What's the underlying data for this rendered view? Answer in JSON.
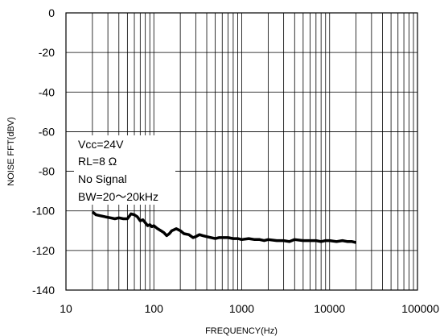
{
  "chart_data": {
    "type": "line",
    "title": "",
    "xlabel": "FREQUENCY(Hz)",
    "ylabel": "NOISE FFT(dBV)",
    "x_scale": "log",
    "xlim": [
      10,
      100000
    ],
    "ylim": [
      -140,
      0
    ],
    "x_tick_labels": [
      "10",
      "100",
      "1000",
      "10000",
      "100000"
    ],
    "y_tick_labels": [
      "0",
      "-20",
      "-40",
      "-60",
      "-80",
      "-100",
      "-120",
      "-140"
    ],
    "grid": true,
    "annotations": [
      "Vcc=24V",
      "RL=8 Ω",
      "No Signal",
      "BW=20～20kHz"
    ],
    "series": [
      {
        "color": "#000000",
        "x": [
          20,
          22,
          25,
          28,
          32,
          36,
          40,
          45,
          50,
          55,
          60,
          65,
          70,
          75,
          80,
          85,
          90,
          95,
          100,
          110,
          120,
          130,
          140,
          150,
          160,
          170,
          180,
          200,
          220,
          250,
          280,
          300,
          330,
          360,
          400,
          450,
          500,
          550,
          600,
          700,
          800,
          900,
          1000,
          1200,
          1400,
          1600,
          1800,
          2000,
          2500,
          3000,
          3500,
          4000,
          5000,
          6000,
          7000,
          8000,
          9000,
          10000,
          12000,
          14000,
          16000,
          18000,
          20000
        ],
        "y": [
          -100.5,
          -102,
          -102.5,
          -103,
          -103.5,
          -104,
          -103.5,
          -104,
          -104,
          -101.5,
          -102,
          -103,
          -105,
          -104.5,
          -106,
          -107.5,
          -107,
          -108,
          -107.5,
          -109,
          -110,
          -111,
          -112.5,
          -111.5,
          -110,
          -109.5,
          -109,
          -110,
          -111.5,
          -112,
          -113.5,
          -113,
          -112,
          -112.5,
          -113,
          -113.5,
          -114,
          -113.5,
          -113.5,
          -113.5,
          -114,
          -114,
          -114.5,
          -114,
          -114.5,
          -114.5,
          -115,
          -114.5,
          -115,
          -115,
          -115.5,
          -114.5,
          -115,
          -115,
          -115,
          -115.5,
          -115,
          -115,
          -115.5,
          -115,
          -115.5,
          -115.5,
          -116
        ]
      }
    ]
  }
}
